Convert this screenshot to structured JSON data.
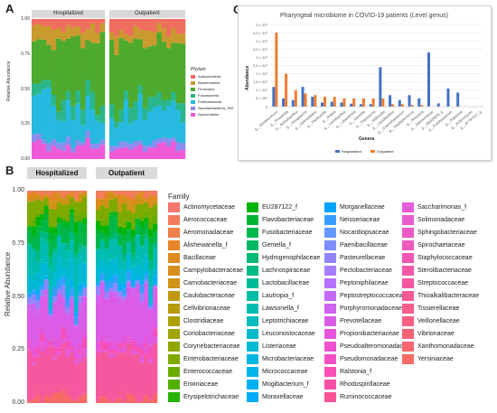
{
  "panels": {
    "a_letter": "A",
    "b_letter": "B",
    "c_letter": "C"
  },
  "panel_a": {
    "strip_left": "Hospitalized",
    "strip_right": "Outpatient",
    "ylabel": "Relative Abundance",
    "yticks": [
      "0.00",
      "0.25",
      "0.50",
      "0.75",
      "1.00"
    ],
    "legend_title": "Phylum",
    "legend": [
      {
        "name": "Actinobacteria",
        "color": "#f06e5f"
      },
      {
        "name": "Bacteroidetes",
        "color": "#c99a2e"
      },
      {
        "name": "Firmicutes",
        "color": "#4daa2d"
      },
      {
        "name": "Fusobacteria",
        "color": "#2bb58a"
      },
      {
        "name": "Proteobacteria",
        "color": "#27b9e0"
      },
      {
        "name": "Saccharibacteria_TM7",
        "color": "#8a8ef0"
      },
      {
        "name": "Spirochaetes",
        "color": "#f05ad8"
      }
    ]
  },
  "panel_b": {
    "strip_left": "Hospitalized",
    "strip_right": "Outpatient",
    "ylabel": "Relative Abundance",
    "yticks": [
      "0.00",
      "0.25",
      "0.50",
      "0.75",
      "1.00"
    ],
    "legend_title": "Family",
    "families": [
      {
        "name": "Actinomycetaceae",
        "color": "#f8766d"
      },
      {
        "name": "Aerococcaceae",
        "color": "#f47b5c"
      },
      {
        "name": "Aeromonadaceae",
        "color": "#ef8049"
      },
      {
        "name": "Alishewanella_f",
        "color": "#e88526"
      },
      {
        "name": "Bacillaceae",
        "color": "#e0891f"
      },
      {
        "name": "Campylobacteraceae",
        "color": "#d78e1c"
      },
      {
        "name": "Carnobacteriaceae",
        "color": "#ce9317"
      },
      {
        "name": "Caulobacteraceae",
        "color": "#c39811"
      },
      {
        "name": "Cellvibrionaceae",
        "color": "#b89c0b"
      },
      {
        "name": "Clostridiaceae",
        "color": "#aba000"
      },
      {
        "name": "Coriobacteriaceae",
        "color": "#9ea400"
      },
      {
        "name": "Corynebacteriaceae",
        "color": "#8fa700"
      },
      {
        "name": "Enterobacteriaceae",
        "color": "#7eaa00"
      },
      {
        "name": "Enterococcaceae",
        "color": "#6aad00"
      },
      {
        "name": "Erwiniaceae",
        "color": "#51b000"
      },
      {
        "name": "Erysipelotrichaceae",
        "color": "#26b200"
      },
      {
        "name": "EU287122_f",
        "color": "#00b40a"
      },
      {
        "name": "Flavobacteriaceae",
        "color": "#00b534"
      },
      {
        "name": "Fusobacteriaceae",
        "color": "#00b74c"
      },
      {
        "name": "Gemella_f",
        "color": "#00b860"
      },
      {
        "name": "Hydrogenophilaceae",
        "color": "#00b972"
      },
      {
        "name": "Lachnospiraceae",
        "color": "#00ba83"
      },
      {
        "name": "Lactobacillaceae",
        "color": "#00bb93"
      },
      {
        "name": "Lautropia_f",
        "color": "#00bca2"
      },
      {
        "name": "Lawsonella_f",
        "color": "#00bcb0"
      },
      {
        "name": "Leptotrichiaceae",
        "color": "#00bcbd"
      },
      {
        "name": "Leuconostocaceae",
        "color": "#00bbc9"
      },
      {
        "name": "Listeriaceae",
        "color": "#00b9d5"
      },
      {
        "name": "Microbacteriaceae",
        "color": "#00b7e0"
      },
      {
        "name": "Micrococcaceae",
        "color": "#00b4ea"
      },
      {
        "name": "Mogibacterium_f",
        "color": "#00b0f3"
      },
      {
        "name": "Moraxellaceae",
        "color": "#00abfa"
      },
      {
        "name": "Morganellaceae",
        "color": "#00a5ff"
      },
      {
        "name": "Neisseriaceae",
        "color": "#379eff"
      },
      {
        "name": "Nocardiopsaceae",
        "color": "#6297ff"
      },
      {
        "name": "Paenibacillaceae",
        "color": "#7d8eff"
      },
      {
        "name": "Pasteurellaceae",
        "color": "#9286ff"
      },
      {
        "name": "Pectobacteriaceae",
        "color": "#a57dff"
      },
      {
        "name": "Peptoniphilaceae",
        "color": "#b574ff"
      },
      {
        "name": "Peptostreptococcaceae",
        "color": "#c46bf8"
      },
      {
        "name": "Porphyromonadaceae",
        "color": "#d063f0"
      },
      {
        "name": "Prevotellaceae",
        "color": "#db5ce7"
      },
      {
        "name": "Propionibacteriaceae",
        "color": "#e556dc"
      },
      {
        "name": "Pseudoalteromonadaceae",
        "color": "#ed52d0"
      },
      {
        "name": "Pseudomonadaceae",
        "color": "#f350c3"
      },
      {
        "name": "Ralstonia_f",
        "color": "#f74fb5"
      },
      {
        "name": "Rhodospirillaceae",
        "color": "#fa50a6"
      },
      {
        "name": "Ruminococcaceae",
        "color": "#fc5397"
      },
      {
        "name": "Saccharimonas_f",
        "color": "#e55bd8"
      },
      {
        "name": "Solimonadaceae",
        "color": "#e95acf"
      },
      {
        "name": "Sphingobacteriaceae",
        "color": "#ec59c6"
      },
      {
        "name": "Spirochaetaceae",
        "color": "#ef58bd"
      },
      {
        "name": "Staphylococcaceae",
        "color": "#f157b3"
      },
      {
        "name": "Sterolibacteriaceae",
        "color": "#f357a9"
      },
      {
        "name": "Streptococcaceae",
        "color": "#f5589f"
      },
      {
        "name": "Thioalkalibacteraceae",
        "color": "#f65a95"
      },
      {
        "name": "Tissierellaceae",
        "color": "#f75c8b"
      },
      {
        "name": "Veillonellaceae",
        "color": "#f85f81"
      },
      {
        "name": "Vibrionaceae",
        "color": "#f86277"
      },
      {
        "name": "Xanthomonadaceae",
        "color": "#f8666e"
      },
      {
        "name": "Yersiniaceae",
        "color": "#f86a66"
      }
    ]
  },
  "chart_data": [
    {
      "panel": "A",
      "type": "bar",
      "stacked": true,
      "facets": [
        "Hospitalized",
        "Outpatient"
      ],
      "ylabel": "Relative Abundance",
      "ylim": [
        0,
        1
      ],
      "legend_title": "Phylum",
      "series_order": [
        "Spirochaetes",
        "Saccharibacteria_TM7",
        "Proteobacteria",
        "Fusobacteria",
        "Firmicutes",
        "Bacteroidetes",
        "Actinobacteria"
      ]
    },
    {
      "panel": "B",
      "type": "bar",
      "stacked": true,
      "facets": [
        "Hospitalized",
        "Outpatient"
      ],
      "ylabel": "Relative Abundance",
      "ylim": [
        0,
        1
      ],
      "legend_title": "Family"
    },
    {
      "panel": "C",
      "type": "bar",
      "title": "Pharyngeal microbiome in COVID-19 patients (Level genus)",
      "xlabel": "Genera",
      "ylabel": "Abundance",
      "yticks": [
        "0",
        "5 × 10⁶",
        "1 × 10⁷",
        "1,5 × 10⁷",
        "2 × 10⁷",
        "2,5 × 10⁷",
        "3 × 10⁷",
        "3,5 × 10⁷",
        "4 × 10⁷",
        "4,5 × 10⁷",
        "5 × 10⁷"
      ],
      "ylim": [
        0,
        50000000
      ],
      "categories": [
        "g__Streptococcus",
        "g__Prevotella",
        "g__Actinobacillus",
        "g__Ureaplasma",
        "g__Haemophilus",
        "g__Pasteurella",
        "g__Rothia",
        "g__Lysinibacillus",
        "g__Leptotrichia",
        "g__Gemella",
        "g__Treponema",
        "g__Veillonella",
        "g__Lactobacillus",
        "g__Corynebacterium",
        "g__Staphylococcus",
        "g__Neisseria",
        "g__Selenomonas",
        "g__AB326832_g",
        "g__Fusobacterium",
        "g__Ralstonia",
        "g__Actinomyces",
        "g__AY797017_g"
      ],
      "series": [
        {
          "name": "Hospitalized",
          "color": "#4472c4",
          "values": [
            12000000,
            5000000,
            4000000,
            12000000,
            6000000,
            2500000,
            3000000,
            2500000,
            1800000,
            1500000,
            1500000,
            24000000,
            7000000,
            4000000,
            7000000,
            5000000,
            33000000,
            2000000,
            11000000,
            8500000,
            0,
            0
          ]
        },
        {
          "name": "Outpatient",
          "color": "#ed7d31",
          "values": [
            45000000,
            20000000,
            10000000,
            8000000,
            7000000,
            6000000,
            6000000,
            5000000,
            5000000,
            5000000,
            5000000,
            5000000,
            1500000,
            1500000,
            1000000,
            1000000,
            0,
            0,
            0,
            0,
            0,
            0
          ]
        }
      ],
      "legend": [
        "Hospitalized",
        "Outpatient"
      ]
    }
  ]
}
